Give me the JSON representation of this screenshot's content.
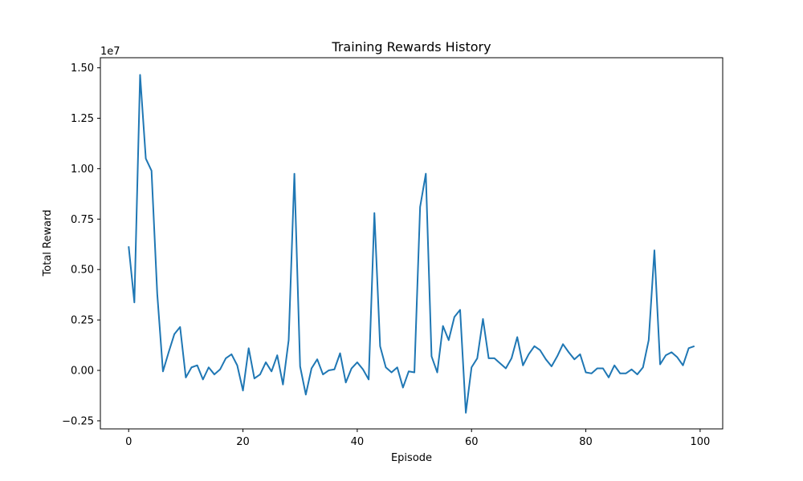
{
  "chart_data": {
    "type": "line",
    "title": "Training Rewards History",
    "xlabel": "Episode",
    "ylabel": "Total Reward",
    "y_offset_label": "1e7",
    "xlim": [
      -4.95,
      103.95
    ],
    "ylim": [
      -0.29,
      1.55
    ],
    "xticks": [
      0,
      20,
      40,
      60,
      80,
      100
    ],
    "xtick_labels": [
      "0",
      "20",
      "40",
      "60",
      "80",
      "100"
    ],
    "yticks": [
      -0.25,
      0,
      0.25,
      0.5,
      0.75,
      1.0,
      1.25,
      1.5
    ],
    "ytick_labels": [
      "−0.25",
      "0.00",
      "0.25",
      "0.50",
      "0.75",
      "1.00",
      "1.25",
      "1.50"
    ],
    "grid": false,
    "line_color": "#1f77b4",
    "series": [
      {
        "x": [
          0,
          1,
          2,
          3,
          4,
          5,
          6,
          7,
          8,
          9,
          10,
          11,
          12,
          13,
          14,
          15,
          16,
          17,
          18,
          19,
          20,
          21,
          22,
          23,
          24,
          25,
          26,
          27,
          28,
          29,
          30,
          31,
          32,
          33,
          34,
          35,
          36,
          37,
          38,
          39,
          40,
          41,
          42,
          43,
          44,
          45,
          46,
          47,
          48,
          49,
          50,
          51,
          52,
          53,
          54,
          55,
          56,
          57,
          58,
          59,
          60,
          61,
          62,
          63,
          64,
          65,
          66,
          67,
          68,
          69,
          70,
          71,
          72,
          73,
          74,
          75,
          76,
          77,
          78,
          79,
          80,
          81,
          82,
          83,
          84,
          85,
          86,
          87,
          88,
          89,
          90,
          91,
          92,
          93,
          94,
          95,
          96,
          97,
          98,
          99
        ],
        "values": [
          0.615,
          0.337,
          1.465,
          1.05,
          0.99,
          0.38,
          -0.005,
          0.09,
          0.18,
          0.215,
          -0.035,
          0.015,
          0.025,
          -0.045,
          0.015,
          -0.02,
          0.005,
          0.06,
          0.08,
          0.025,
          -0.1,
          0.11,
          -0.04,
          -0.02,
          0.04,
          -0.005,
          0.075,
          -0.07,
          0.15,
          0.975,
          0.02,
          -0.12,
          0.01,
          0.055,
          -0.02,
          0.0,
          0.005,
          0.085,
          -0.06,
          0.01,
          0.04,
          0.005,
          -0.045,
          0.78,
          0.12,
          0.015,
          -0.01,
          0.015,
          -0.085,
          -0.005,
          -0.01,
          0.81,
          0.975,
          0.07,
          -0.01,
          0.22,
          0.15,
          0.265,
          0.3,
          -0.21,
          0.015,
          0.06,
          0.255,
          0.06,
          0.06,
          0.035,
          0.01,
          0.06,
          0.165,
          0.025,
          0.08,
          0.12,
          0.1,
          0.055,
          0.02,
          0.07,
          0.13,
          0.09,
          0.055,
          0.08,
          -0.01,
          -0.015,
          0.01,
          0.01,
          -0.035,
          0.025,
          -0.015,
          -0.015,
          0.005,
          -0.02,
          0.015,
          0.15,
          0.595,
          0.03,
          0.075,
          0.09,
          0.065,
          0.025,
          0.11,
          0.12
        ]
      }
    ]
  }
}
